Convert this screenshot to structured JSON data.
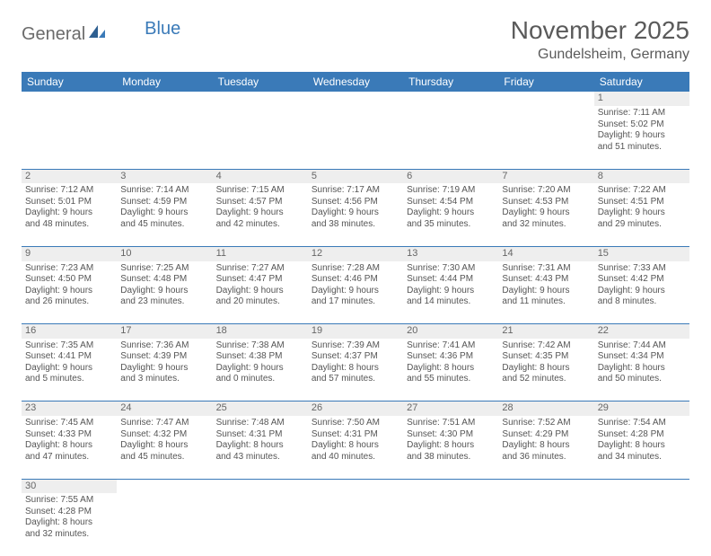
{
  "logo": {
    "part1": "General",
    "part2": "Blue"
  },
  "title": "November 2025",
  "location": "Gundelsheim, Germany",
  "colors": {
    "header_bg": "#3a7ab8",
    "header_text": "#ffffff",
    "daynum_bg": "#eeeeee",
    "row_divider": "#3a7ab8",
    "body_text": "#555555",
    "title_text": "#5a5a5a",
    "logo_gray": "#6b6b6b",
    "logo_blue": "#3a7ab8"
  },
  "typography": {
    "title_fontsize": 28,
    "location_fontsize": 16,
    "weekday_fontsize": 12,
    "daynum_fontsize": 11,
    "cell_fontsize": 10
  },
  "weekdays": [
    "Sunday",
    "Monday",
    "Tuesday",
    "Wednesday",
    "Thursday",
    "Friday",
    "Saturday"
  ],
  "weeks": [
    [
      null,
      null,
      null,
      null,
      null,
      null,
      {
        "n": "1",
        "sr": "Sunrise: 7:11 AM",
        "ss": "Sunset: 5:02 PM",
        "d1": "Daylight: 9 hours",
        "d2": "and 51 minutes."
      }
    ],
    [
      {
        "n": "2",
        "sr": "Sunrise: 7:12 AM",
        "ss": "Sunset: 5:01 PM",
        "d1": "Daylight: 9 hours",
        "d2": "and 48 minutes."
      },
      {
        "n": "3",
        "sr": "Sunrise: 7:14 AM",
        "ss": "Sunset: 4:59 PM",
        "d1": "Daylight: 9 hours",
        "d2": "and 45 minutes."
      },
      {
        "n": "4",
        "sr": "Sunrise: 7:15 AM",
        "ss": "Sunset: 4:57 PM",
        "d1": "Daylight: 9 hours",
        "d2": "and 42 minutes."
      },
      {
        "n": "5",
        "sr": "Sunrise: 7:17 AM",
        "ss": "Sunset: 4:56 PM",
        "d1": "Daylight: 9 hours",
        "d2": "and 38 minutes."
      },
      {
        "n": "6",
        "sr": "Sunrise: 7:19 AM",
        "ss": "Sunset: 4:54 PM",
        "d1": "Daylight: 9 hours",
        "d2": "and 35 minutes."
      },
      {
        "n": "7",
        "sr": "Sunrise: 7:20 AM",
        "ss": "Sunset: 4:53 PM",
        "d1": "Daylight: 9 hours",
        "d2": "and 32 minutes."
      },
      {
        "n": "8",
        "sr": "Sunrise: 7:22 AM",
        "ss": "Sunset: 4:51 PM",
        "d1": "Daylight: 9 hours",
        "d2": "and 29 minutes."
      }
    ],
    [
      {
        "n": "9",
        "sr": "Sunrise: 7:23 AM",
        "ss": "Sunset: 4:50 PM",
        "d1": "Daylight: 9 hours",
        "d2": "and 26 minutes."
      },
      {
        "n": "10",
        "sr": "Sunrise: 7:25 AM",
        "ss": "Sunset: 4:48 PM",
        "d1": "Daylight: 9 hours",
        "d2": "and 23 minutes."
      },
      {
        "n": "11",
        "sr": "Sunrise: 7:27 AM",
        "ss": "Sunset: 4:47 PM",
        "d1": "Daylight: 9 hours",
        "d2": "and 20 minutes."
      },
      {
        "n": "12",
        "sr": "Sunrise: 7:28 AM",
        "ss": "Sunset: 4:46 PM",
        "d1": "Daylight: 9 hours",
        "d2": "and 17 minutes."
      },
      {
        "n": "13",
        "sr": "Sunrise: 7:30 AM",
        "ss": "Sunset: 4:44 PM",
        "d1": "Daylight: 9 hours",
        "d2": "and 14 minutes."
      },
      {
        "n": "14",
        "sr": "Sunrise: 7:31 AM",
        "ss": "Sunset: 4:43 PM",
        "d1": "Daylight: 9 hours",
        "d2": "and 11 minutes."
      },
      {
        "n": "15",
        "sr": "Sunrise: 7:33 AM",
        "ss": "Sunset: 4:42 PM",
        "d1": "Daylight: 9 hours",
        "d2": "and 8 minutes."
      }
    ],
    [
      {
        "n": "16",
        "sr": "Sunrise: 7:35 AM",
        "ss": "Sunset: 4:41 PM",
        "d1": "Daylight: 9 hours",
        "d2": "and 5 minutes."
      },
      {
        "n": "17",
        "sr": "Sunrise: 7:36 AM",
        "ss": "Sunset: 4:39 PM",
        "d1": "Daylight: 9 hours",
        "d2": "and 3 minutes."
      },
      {
        "n": "18",
        "sr": "Sunrise: 7:38 AM",
        "ss": "Sunset: 4:38 PM",
        "d1": "Daylight: 9 hours",
        "d2": "and 0 minutes."
      },
      {
        "n": "19",
        "sr": "Sunrise: 7:39 AM",
        "ss": "Sunset: 4:37 PM",
        "d1": "Daylight: 8 hours",
        "d2": "and 57 minutes."
      },
      {
        "n": "20",
        "sr": "Sunrise: 7:41 AM",
        "ss": "Sunset: 4:36 PM",
        "d1": "Daylight: 8 hours",
        "d2": "and 55 minutes."
      },
      {
        "n": "21",
        "sr": "Sunrise: 7:42 AM",
        "ss": "Sunset: 4:35 PM",
        "d1": "Daylight: 8 hours",
        "d2": "and 52 minutes."
      },
      {
        "n": "22",
        "sr": "Sunrise: 7:44 AM",
        "ss": "Sunset: 4:34 PM",
        "d1": "Daylight: 8 hours",
        "d2": "and 50 minutes."
      }
    ],
    [
      {
        "n": "23",
        "sr": "Sunrise: 7:45 AM",
        "ss": "Sunset: 4:33 PM",
        "d1": "Daylight: 8 hours",
        "d2": "and 47 minutes."
      },
      {
        "n": "24",
        "sr": "Sunrise: 7:47 AM",
        "ss": "Sunset: 4:32 PM",
        "d1": "Daylight: 8 hours",
        "d2": "and 45 minutes."
      },
      {
        "n": "25",
        "sr": "Sunrise: 7:48 AM",
        "ss": "Sunset: 4:31 PM",
        "d1": "Daylight: 8 hours",
        "d2": "and 43 minutes."
      },
      {
        "n": "26",
        "sr": "Sunrise: 7:50 AM",
        "ss": "Sunset: 4:31 PM",
        "d1": "Daylight: 8 hours",
        "d2": "and 40 minutes."
      },
      {
        "n": "27",
        "sr": "Sunrise: 7:51 AM",
        "ss": "Sunset: 4:30 PM",
        "d1": "Daylight: 8 hours",
        "d2": "and 38 minutes."
      },
      {
        "n": "28",
        "sr": "Sunrise: 7:52 AM",
        "ss": "Sunset: 4:29 PM",
        "d1": "Daylight: 8 hours",
        "d2": "and 36 minutes."
      },
      {
        "n": "29",
        "sr": "Sunrise: 7:54 AM",
        "ss": "Sunset: 4:28 PM",
        "d1": "Daylight: 8 hours",
        "d2": "and 34 minutes."
      }
    ],
    [
      {
        "n": "30",
        "sr": "Sunrise: 7:55 AM",
        "ss": "Sunset: 4:28 PM",
        "d1": "Daylight: 8 hours",
        "d2": "and 32 minutes."
      },
      null,
      null,
      null,
      null,
      null,
      null
    ]
  ]
}
